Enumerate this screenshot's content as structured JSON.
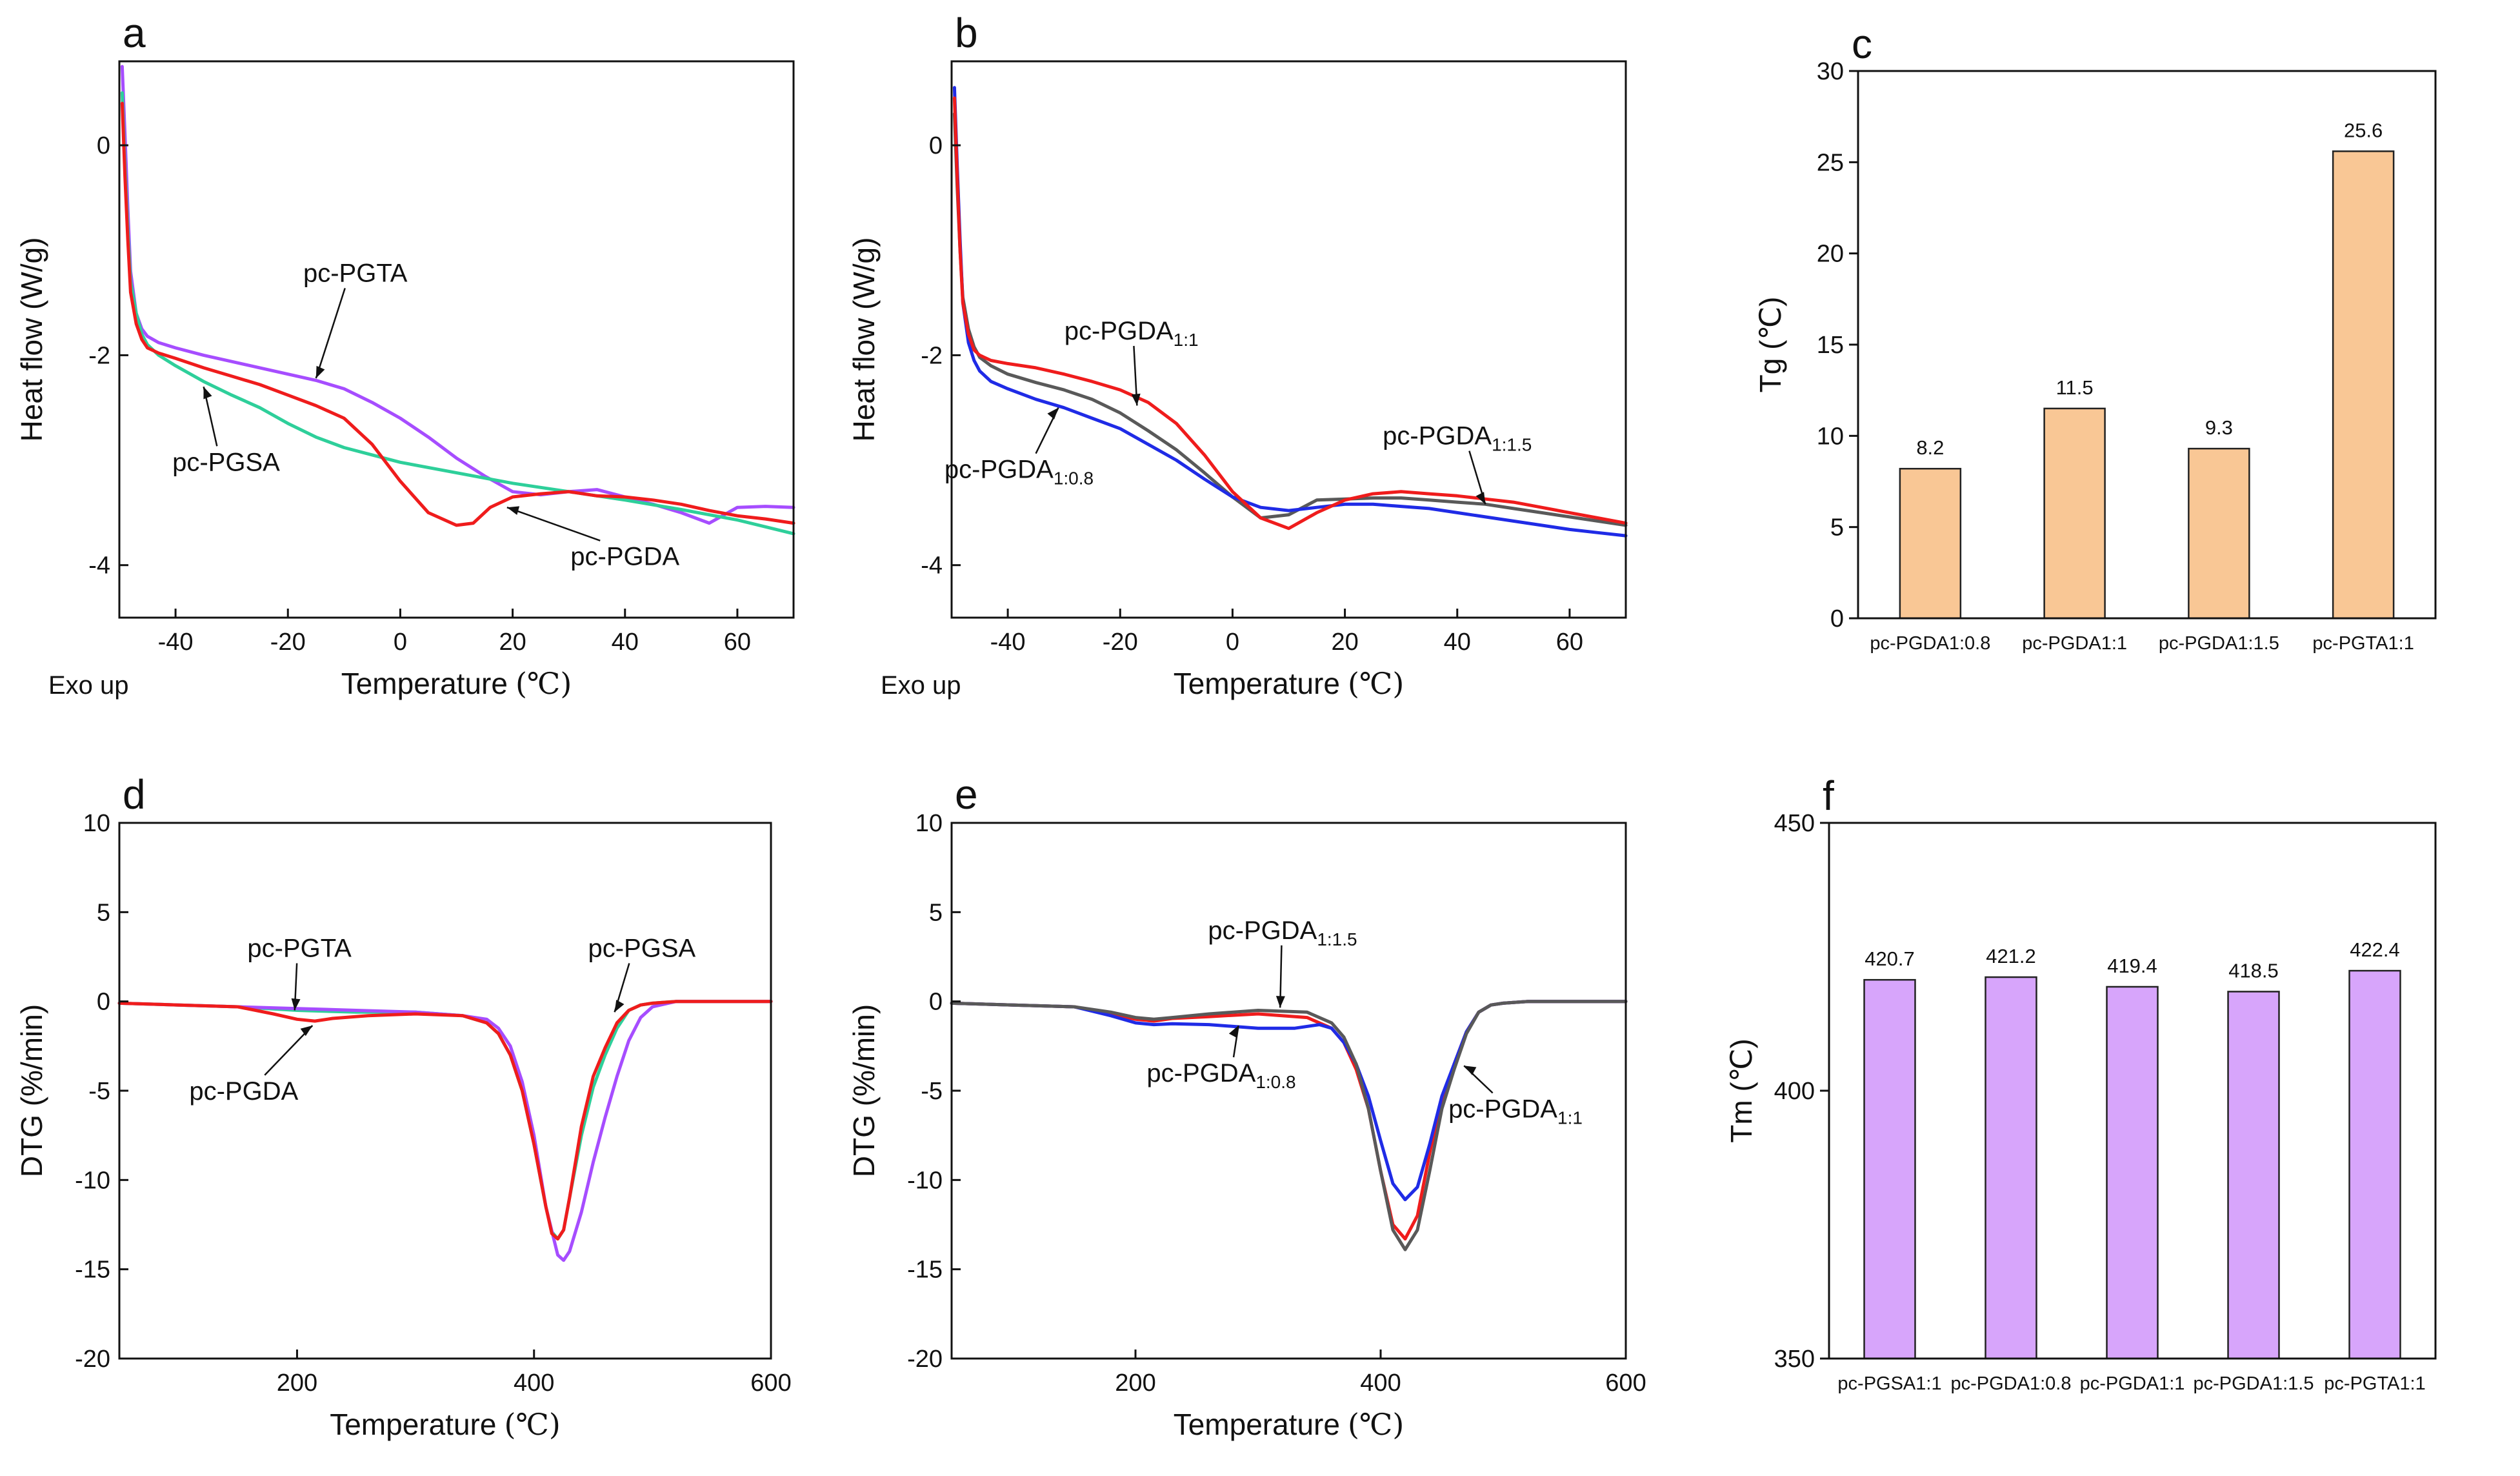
{
  "colors": {
    "red": "#ef1c1c",
    "purple": "#a64dff",
    "green": "#2ecf9a",
    "blue": "#1f2be6",
    "gray": "#595959",
    "orange_bar": "#f9c795",
    "purple_bar": "#d7a5fb"
  },
  "chart_data": [
    {
      "id": "a",
      "letter": "a",
      "type": "line",
      "xlabel_main": "Temperature",
      "xlabel_unit": "(℃)",
      "ylabel": "Heat flow (W/g)",
      "corner_note": "Exo up",
      "xlim": [
        -50,
        70
      ],
      "ylim": [
        -4.5,
        0.8
      ],
      "xticks": [
        -40,
        -20,
        0,
        20,
        40,
        60
      ],
      "yticks": [
        0,
        -2,
        -4
      ],
      "series": [
        {
          "name": "pc-PGTA",
          "color": "purple",
          "x": [
            -49.5,
            -49,
            -48.5,
            -48,
            -47,
            -46,
            -45,
            -43,
            -40,
            -35,
            -30,
            -25,
            -20,
            -15,
            -10,
            -5,
            0,
            5,
            10,
            15,
            20,
            25,
            30,
            35,
            40,
            45,
            50,
            55,
            60,
            65,
            70
          ],
          "y": [
            0.75,
            0.1,
            -0.6,
            -1.2,
            -1.6,
            -1.75,
            -1.82,
            -1.88,
            -1.93,
            -2.0,
            -2.06,
            -2.12,
            -2.18,
            -2.24,
            -2.32,
            -2.45,
            -2.6,
            -2.78,
            -2.98,
            -3.15,
            -3.3,
            -3.33,
            -3.3,
            -3.28,
            -3.35,
            -3.42,
            -3.5,
            -3.6,
            -3.45,
            -3.44,
            -3.45
          ]
        },
        {
          "name": "pc-PGSA",
          "color": "green",
          "x": [
            -49.5,
            -49,
            -48.5,
            -48,
            -47,
            -46,
            -45,
            -43,
            -40,
            -35,
            -30,
            -25,
            -20,
            -15,
            -10,
            -5,
            0,
            10,
            20,
            30,
            40,
            50,
            60,
            70
          ],
          "y": [
            0.5,
            -0.2,
            -0.8,
            -1.3,
            -1.6,
            -1.8,
            -1.9,
            -2.0,
            -2.1,
            -2.25,
            -2.38,
            -2.5,
            -2.65,
            -2.78,
            -2.88,
            -2.95,
            -3.02,
            -3.12,
            -3.22,
            -3.3,
            -3.38,
            -3.47,
            -3.57,
            -3.7
          ]
        },
        {
          "name": "pc-PGDA",
          "color": "red",
          "x": [
            -49.5,
            -49,
            -48.5,
            -48,
            -47,
            -46,
            -45,
            -43,
            -40,
            -35,
            -30,
            -25,
            -20,
            -15,
            -10,
            -5,
            0,
            5,
            10,
            13,
            16,
            20,
            25,
            30,
            35,
            40,
            45,
            50,
            55,
            60,
            65,
            70
          ],
          "y": [
            0.4,
            -0.3,
            -0.9,
            -1.4,
            -1.7,
            -1.85,
            -1.93,
            -1.98,
            -2.03,
            -2.12,
            -2.2,
            -2.28,
            -2.38,
            -2.48,
            -2.6,
            -2.85,
            -3.2,
            -3.5,
            -3.62,
            -3.6,
            -3.45,
            -3.35,
            -3.32,
            -3.3,
            -3.34,
            -3.35,
            -3.38,
            -3.42,
            -3.48,
            -3.53,
            -3.56,
            -3.6
          ]
        }
      ],
      "annotations": [
        {
          "text": "pc-PGTA",
          "sub": "",
          "x": -8,
          "y": -1.3,
          "ax": -15,
          "ay": -2.22
        },
        {
          "text": "pc-PGSA",
          "sub": "",
          "x": -31,
          "y": -3.1,
          "ax": -35,
          "ay": -2.3
        },
        {
          "text": "pc-PGDA",
          "sub": "",
          "x": 40,
          "y": -4.0,
          "ax": 19,
          "ay": -3.45
        }
      ]
    },
    {
      "id": "b",
      "letter": "b",
      "type": "line",
      "xlabel_main": "Temperature",
      "xlabel_unit": "(℃)",
      "ylabel": "Heat flow (W/g)",
      "corner_note": "Exo up",
      "xlim": [
        -50,
        70
      ],
      "ylim": [
        -4.5,
        0.8
      ],
      "xticks": [
        -40,
        -20,
        0,
        20,
        40,
        60
      ],
      "yticks": [
        0,
        -2,
        -4
      ],
      "series": [
        {
          "name": "pc-PGDA1:1.5",
          "color": "gray",
          "x": [
            -49.5,
            -49,
            -48.5,
            -48,
            -47,
            -46,
            -45,
            -43,
            -40,
            -35,
            -30,
            -25,
            -20,
            -15,
            -10,
            -5,
            0,
            5,
            10,
            15,
            20,
            25,
            30,
            35,
            40,
            45,
            50,
            55,
            60,
            65,
            70
          ],
          "y": [
            0.3,
            -0.4,
            -1.0,
            -1.45,
            -1.75,
            -1.92,
            -2.02,
            -2.1,
            -2.18,
            -2.26,
            -2.33,
            -2.42,
            -2.55,
            -2.72,
            -2.9,
            -3.12,
            -3.35,
            -3.55,
            -3.52,
            -3.38,
            -3.37,
            -3.36,
            -3.36,
            -3.38,
            -3.4,
            -3.42,
            -3.46,
            -3.5,
            -3.54,
            -3.58,
            -3.62
          ]
        },
        {
          "name": "pc-PGDA1:0.8",
          "color": "blue",
          "x": [
            -49.5,
            -49,
            -48.5,
            -48,
            -47,
            -46,
            -45,
            -43,
            -40,
            -35,
            -30,
            -25,
            -20,
            -15,
            -10,
            -5,
            0,
            5,
            10,
            15,
            20,
            25,
            30,
            35,
            40,
            45,
            50,
            55,
            60,
            65,
            70
          ],
          "y": [
            0.55,
            -0.2,
            -0.9,
            -1.5,
            -1.88,
            -2.05,
            -2.15,
            -2.25,
            -2.32,
            -2.42,
            -2.5,
            -2.6,
            -2.7,
            -2.85,
            -3.0,
            -3.18,
            -3.35,
            -3.45,
            -3.48,
            -3.45,
            -3.42,
            -3.42,
            -3.44,
            -3.46,
            -3.5,
            -3.54,
            -3.58,
            -3.62,
            -3.66,
            -3.69,
            -3.72
          ]
        },
        {
          "name": "pc-PGDA1:1",
          "color": "red",
          "x": [
            -49.5,
            -49,
            -48.5,
            -48,
            -47,
            -46,
            -45,
            -43,
            -40,
            -35,
            -30,
            -25,
            -20,
            -15,
            -10,
            -5,
            0,
            5,
            10,
            15,
            20,
            25,
            30,
            35,
            40,
            45,
            50,
            55,
            60,
            65,
            70
          ],
          "y": [
            0.45,
            -0.3,
            -1.0,
            -1.5,
            -1.8,
            -1.95,
            -2.0,
            -2.05,
            -2.08,
            -2.12,
            -2.18,
            -2.25,
            -2.33,
            -2.45,
            -2.65,
            -2.95,
            -3.3,
            -3.55,
            -3.65,
            -3.5,
            -3.38,
            -3.32,
            -3.3,
            -3.32,
            -3.34,
            -3.37,
            -3.4,
            -3.45,
            -3.5,
            -3.55,
            -3.6
          ]
        }
      ],
      "annotations": [
        {
          "text": "pc-PGDA",
          "sub": "1:1",
          "x": -18,
          "y": -1.85,
          "ax": -17,
          "ay": -2.48
        },
        {
          "text": "pc-PGDA",
          "sub": "1:0.8",
          "x": -38,
          "y": -3.17,
          "ax": -31,
          "ay": -2.5
        },
        {
          "text": "pc-PGDA",
          "sub": "1:1.5",
          "x": 40,
          "y": -2.85,
          "ax": 45,
          "ay": -3.42
        }
      ]
    },
    {
      "id": "c",
      "letter": "c",
      "type": "bar",
      "ylabel": "Tg (℃)",
      "ylim": [
        0,
        30
      ],
      "yticks": [
        0,
        5,
        10,
        15,
        20,
        25,
        30
      ],
      "bar_color": "orange_bar",
      "categories": [
        "pc-PGDA1:0.8",
        "pc-PGDA1:1",
        "pc-PGDA1:1.5",
        "pc-PGTA1:1"
      ],
      "values": [
        8.2,
        11.5,
        9.3,
        25.6
      ],
      "value_labels": [
        "8.2",
        "11.5",
        "9.3",
        "25.6"
      ]
    },
    {
      "id": "d",
      "letter": "d",
      "type": "line",
      "xlabel_main": "Temperature",
      "xlabel_unit": "(℃)",
      "ylabel": "DTG (%/min)",
      "corner_note": "",
      "xlim": [
        50,
        600
      ],
      "ylim": [
        -20,
        10
      ],
      "xticks": [
        200,
        400,
        600
      ],
      "yticks": [
        10,
        5,
        0,
        -5,
        -10,
        -15,
        -20
      ],
      "series": [
        {
          "name": "pc-PGSA",
          "color": "green",
          "x": [
            50,
            100,
            150,
            200,
            250,
            300,
            340,
            360,
            370,
            380,
            390,
            400,
            410,
            415,
            420,
            425,
            430,
            440,
            450,
            460,
            470,
            480,
            490,
            500,
            520,
            560,
            600
          ],
          "y": [
            -0.1,
            -0.2,
            -0.3,
            -0.5,
            -0.6,
            -0.6,
            -0.8,
            -1.2,
            -1.8,
            -3.0,
            -5.0,
            -8.0,
            -11.5,
            -12.9,
            -13.3,
            -12.8,
            -11.0,
            -7.5,
            -4.8,
            -3.0,
            -1.5,
            -0.5,
            -0.2,
            -0.1,
            0,
            0,
            0
          ]
        },
        {
          "name": "pc-PGTA",
          "color": "purple",
          "x": [
            50,
            100,
            150,
            200,
            250,
            300,
            340,
            360,
            370,
            380,
            390,
            400,
            410,
            420,
            425,
            430,
            440,
            450,
            460,
            470,
            480,
            490,
            500,
            520,
            560,
            600
          ],
          "y": [
            -0.1,
            -0.2,
            -0.3,
            -0.4,
            -0.5,
            -0.6,
            -0.8,
            -1.0,
            -1.5,
            -2.5,
            -4.5,
            -7.5,
            -11.5,
            -14.2,
            -14.5,
            -14.0,
            -11.8,
            -9.0,
            -6.5,
            -4.2,
            -2.2,
            -0.9,
            -0.3,
            0,
            0,
            0
          ]
        },
        {
          "name": "pc-PGDA",
          "color": "red",
          "x": [
            50,
            100,
            150,
            180,
            200,
            215,
            230,
            260,
            300,
            340,
            360,
            370,
            380,
            390,
            400,
            410,
            415,
            420,
            425,
            430,
            440,
            450,
            460,
            470,
            480,
            490,
            500,
            520,
            560,
            600
          ],
          "y": [
            -0.1,
            -0.2,
            -0.3,
            -0.7,
            -1.0,
            -1.1,
            -0.95,
            -0.8,
            -0.7,
            -0.8,
            -1.2,
            -1.8,
            -3.0,
            -5.0,
            -8.0,
            -11.5,
            -13.0,
            -13.3,
            -12.8,
            -11.0,
            -7.0,
            -4.2,
            -2.6,
            -1.2,
            -0.5,
            -0.2,
            -0.1,
            0,
            0,
            0
          ]
        }
      ],
      "annotations": [
        {
          "text": "pc-PGTA",
          "sub": "",
          "x": 202,
          "y": 2.5,
          "ax": 198,
          "ay": -0.5
        },
        {
          "text": "pc-PGDA",
          "sub": "",
          "x": 155,
          "y": -5.5,
          "ax": 213,
          "ay": -1.35
        },
        {
          "text": "pc-PGSA",
          "sub": "",
          "x": 491,
          "y": 2.5,
          "ax": 468,
          "ay": -0.6
        }
      ]
    },
    {
      "id": "e",
      "letter": "e",
      "type": "line",
      "xlabel_main": "Temperature",
      "xlabel_unit": "(℃)",
      "ylabel": "DTG (%/min)",
      "corner_note": "",
      "xlim": [
        50,
        600
      ],
      "ylim": [
        -20,
        10
      ],
      "xticks": [
        200,
        400,
        600
      ],
      "yticks": [
        10,
        5,
        0,
        -5,
        -10,
        -15,
        -20
      ],
      "series": [
        {
          "name": "pc-PGDA1:1",
          "color": "red",
          "x": [
            50,
            100,
            150,
            180,
            200,
            215,
            230,
            260,
            300,
            340,
            360,
            370,
            380,
            390,
            400,
            410,
            420,
            430,
            440,
            450,
            460,
            470,
            480,
            490,
            500,
            520,
            560,
            600
          ],
          "y": [
            -0.1,
            -0.2,
            -0.3,
            -0.7,
            -1.0,
            -1.1,
            -0.95,
            -0.85,
            -0.7,
            -0.9,
            -1.5,
            -2.3,
            -3.8,
            -6.0,
            -9.5,
            -12.5,
            -13.3,
            -12.0,
            -8.5,
            -5.5,
            -3.5,
            -1.7,
            -0.6,
            -0.2,
            -0.1,
            0,
            0,
            0
          ]
        },
        {
          "name": "pc-PGDA1:0.8",
          "color": "blue",
          "x": [
            50,
            100,
            150,
            180,
            200,
            215,
            230,
            260,
            300,
            330,
            350,
            360,
            370,
            380,
            390,
            400,
            410,
            420,
            430,
            440,
            450,
            460,
            470,
            480,
            490,
            500,
            520,
            560,
            600
          ],
          "y": [
            -0.1,
            -0.2,
            -0.3,
            -0.8,
            -1.2,
            -1.3,
            -1.25,
            -1.3,
            -1.5,
            -1.5,
            -1.3,
            -1.5,
            -2.3,
            -3.5,
            -5.3,
            -7.8,
            -10.2,
            -11.1,
            -10.4,
            -8.0,
            -5.3,
            -3.5,
            -1.7,
            -0.6,
            -0.2,
            -0.1,
            0,
            0,
            0
          ]
        },
        {
          "name": "pc-PGDA1:1.5",
          "color": "gray",
          "x": [
            50,
            100,
            150,
            180,
            200,
            215,
            230,
            260,
            300,
            340,
            360,
            370,
            380,
            390,
            400,
            410,
            420,
            430,
            440,
            450,
            460,
            470,
            480,
            490,
            500,
            520,
            560,
            600
          ],
          "y": [
            -0.1,
            -0.2,
            -0.3,
            -0.6,
            -0.9,
            -1.0,
            -0.9,
            -0.7,
            -0.5,
            -0.6,
            -1.2,
            -2.0,
            -3.5,
            -6.0,
            -9.5,
            -12.8,
            -13.9,
            -12.8,
            -9.5,
            -6.0,
            -3.8,
            -1.8,
            -0.6,
            -0.2,
            -0.1,
            0,
            0,
            0
          ]
        }
      ],
      "annotations": [
        {
          "text": "pc-PGDA",
          "sub": "1:1.5",
          "x": 320,
          "y": 3.5,
          "ax": 318,
          "ay": -0.35
        },
        {
          "text": "pc-PGDA",
          "sub": "1:0.8",
          "x": 270,
          "y": -4.5,
          "ax": 284,
          "ay": -1.35
        },
        {
          "text": "pc-PGDA",
          "sub": "1:1",
          "x": 510,
          "y": -6.5,
          "ax": 468,
          "ay": -3.6
        }
      ]
    },
    {
      "id": "f",
      "letter": "f",
      "type": "bar",
      "ylabel": "Tm (℃)",
      "ylim": [
        350,
        450
      ],
      "yticks": [
        350,
        400,
        450
      ],
      "bar_color": "purple_bar",
      "categories": [
        "pc-PGSA1:1",
        "pc-PGDA1:0.8",
        "pc-PGDA1:1",
        "pc-PGDA1:1.5",
        "pc-PGTA1:1"
      ],
      "values": [
        420.7,
        421.2,
        419.4,
        418.5,
        422.4
      ],
      "value_labels": [
        "420.7",
        "421.2",
        "419.4",
        "418.5",
        "422.4"
      ]
    }
  ]
}
